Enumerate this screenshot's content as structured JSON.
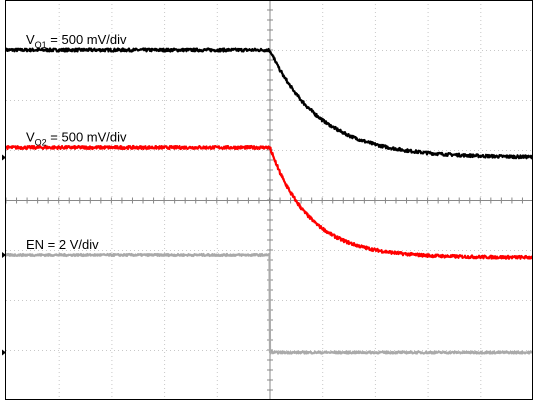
{
  "chart_data": {
    "type": "line",
    "x_divisions": 10,
    "y_divisions": 8,
    "grid": true,
    "series": [
      {
        "name": "VO1",
        "label": {
          "main": "V",
          "sub": "O1",
          "rest": " = 500 mV/div"
        },
        "color": "#000000",
        "initial_div": 7.0,
        "final_div": 4.85,
        "step_at_div": 5.0,
        "tau_div": 0.95,
        "noise_div": 0.03
      },
      {
        "name": "VO2",
        "label": {
          "main": "V",
          "sub": "O2",
          "rest": " = 500 mV/div"
        },
        "color": "#ff0000",
        "initial_div": 5.05,
        "final_div": 2.85,
        "step_at_div": 5.0,
        "tau_div": 0.75,
        "noise_div": 0.03
      },
      {
        "name": "EN",
        "label": {
          "main": "EN = 2 V/div",
          "sub": "",
          "rest": ""
        },
        "color": "#aaaaaa",
        "initial_div": 2.9,
        "final_div": 0.95,
        "step_at_div": 5.0,
        "tau_div": 0.0,
        "noise_div": 0.02
      }
    ],
    "ground_markers_div": [
      4.85,
      2.9,
      0.95
    ]
  }
}
